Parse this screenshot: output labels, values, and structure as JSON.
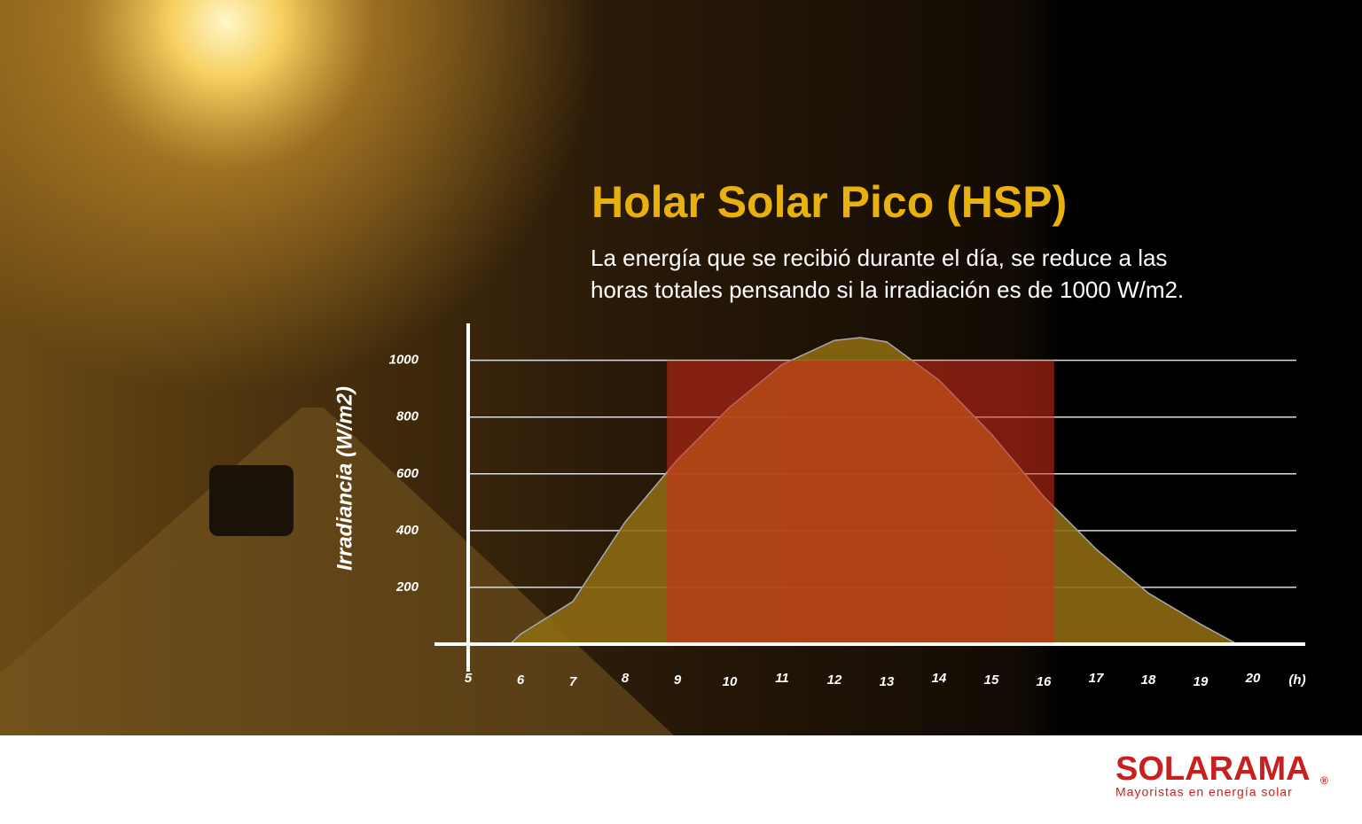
{
  "chart_data": {
    "type": "area",
    "title": "Holar Solar Pico (HSP)",
    "subtitle_lines": [
      "La energía que se recibió durante el día, se reduce a las",
      "horas totales pensando si la irradiación es de 1000 W/m2."
    ],
    "y_label": "Irradiancia (W/m2)",
    "x_unit": "(h)",
    "x": [
      5.8,
      6,
      7,
      8,
      9,
      10,
      11,
      12,
      12.5,
      13,
      14,
      15,
      16,
      17,
      18,
      19,
      19.7
    ],
    "series": [
      {
        "color": "#8c6a12",
        "values": [
          0,
          35,
          150,
          430,
          650,
          835,
          985,
          1070,
          1080,
          1065,
          930,
          740,
          520,
          335,
          180,
          70,
          0
        ]
      }
    ],
    "hsp_band": {
      "x": [
        8.8,
        16.2
      ],
      "value": 1000,
      "color": "#d42a1a"
    },
    "xlim": [
      5,
      21
    ],
    "ylim": [
      0,
      1130
    ],
    "xticks": [
      5,
      6,
      7,
      8,
      9,
      10,
      11,
      12,
      13,
      14,
      15,
      16,
      17,
      18,
      19,
      20
    ],
    "yticks": [
      200,
      400,
      600,
      800,
      1000
    ],
    "grid": true
  },
  "logo": {
    "name": "SOLARAMA",
    "mark": "®",
    "tagline": "Mayoristas en energía solar"
  }
}
